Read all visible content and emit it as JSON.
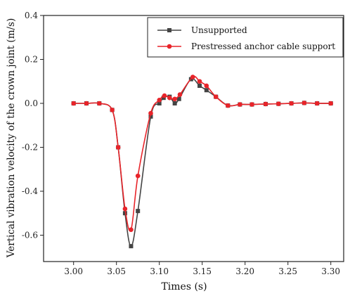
{
  "chart_data": {
    "type": "line",
    "title": "",
    "xlabel": "Times (s)",
    "ylabel": "Vertical vibration velocity of the crown joint (m/s)",
    "xlim": [
      2.965,
      3.315
    ],
    "ylim": [
      -0.72,
      0.4
    ],
    "xticks": [
      3.0,
      3.05,
      3.1,
      3.15,
      3.2,
      3.25,
      3.3
    ],
    "xtick_labels": [
      "3.00",
      "3.05",
      "3.10",
      "3.15",
      "3.20",
      "3.25",
      "3.30"
    ],
    "yticks": [
      0.4,
      0.2,
      0.0,
      -0.2,
      -0.4,
      -0.6
    ],
    "ytick_labels": [
      "0.4",
      "0.2",
      "0.0",
      "-0.2",
      "-0.4",
      "-0.6"
    ],
    "grid": false,
    "legend_position": "top-right",
    "series": [
      {
        "name": "Unsupported",
        "color": "#444444",
        "marker": "square",
        "x": [
          3.0,
          3.015,
          3.03,
          3.045,
          3.052,
          3.06,
          3.067,
          3.075,
          3.09,
          3.1,
          3.105,
          3.112,
          3.118,
          3.123,
          3.137,
          3.147,
          3.155,
          3.166,
          3.18,
          3.194,
          3.208,
          3.224,
          3.239,
          3.254,
          3.269,
          3.284,
          3.3
        ],
        "y": [
          0.0,
          0.0,
          0.0,
          -0.03,
          -0.2,
          -0.5,
          -0.65,
          -0.49,
          -0.06,
          0.0,
          0.025,
          0.03,
          0.0,
          0.02,
          0.11,
          0.08,
          0.06,
          0.03,
          -0.01,
          -0.005,
          -0.005,
          -0.003,
          -0.002,
          0.0,
          0.002,
          0.0,
          0.0
        ]
      },
      {
        "name": "Prestressed anchor cable support",
        "color": "#e8242a",
        "marker": "circle",
        "x": [
          3.0,
          3.015,
          3.03,
          3.045,
          3.052,
          3.06,
          3.067,
          3.075,
          3.09,
          3.1,
          3.106,
          3.112,
          3.118,
          3.124,
          3.139,
          3.147,
          3.155,
          3.166,
          3.18,
          3.194,
          3.208,
          3.224,
          3.239,
          3.254,
          3.269,
          3.284,
          3.3
        ],
        "y": [
          0.0,
          0.0,
          0.0,
          -0.03,
          -0.2,
          -0.48,
          -0.575,
          -0.33,
          -0.045,
          0.015,
          0.035,
          0.025,
          0.02,
          0.04,
          0.12,
          0.1,
          0.08,
          0.03,
          -0.01,
          -0.005,
          -0.005,
          -0.003,
          -0.002,
          0.0,
          0.002,
          0.0,
          0.0
        ]
      }
    ]
  }
}
